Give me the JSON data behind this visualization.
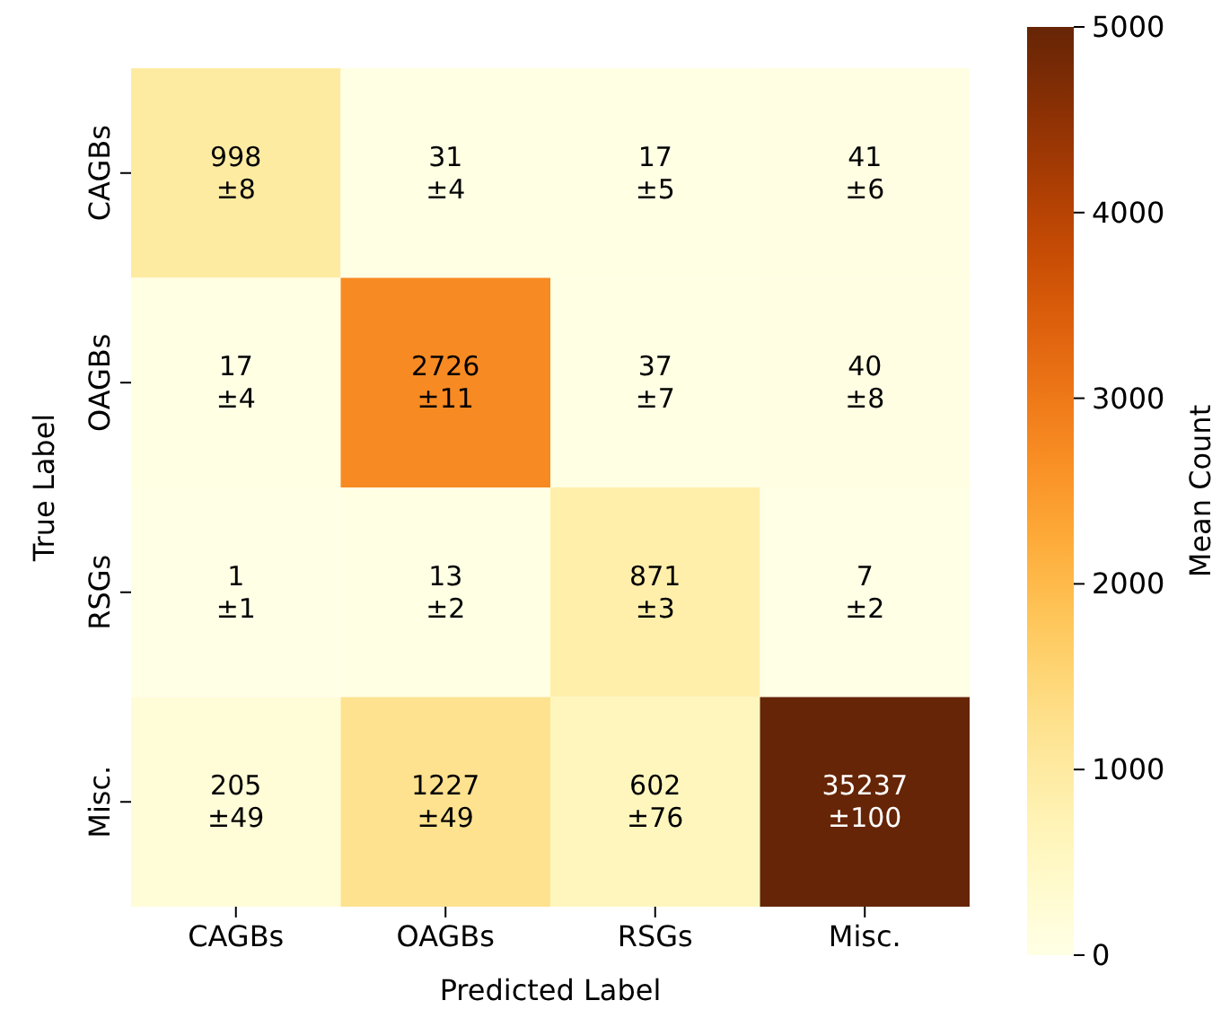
{
  "chart_data": {
    "type": "heatmap",
    "xlabel": "Predicted Label",
    "ylabel": "True Label",
    "clabel": "Mean Count",
    "categories": [
      "CAGBs",
      "OAGBs",
      "RSGs",
      "Misc."
    ],
    "y_categories": [
      "CAGBs",
      "OAGBs",
      "RSGs",
      "Misc."
    ],
    "cells": [
      [
        998,
        31,
        17,
        41
      ],
      [
        17,
        2726,
        37,
        40
      ],
      [
        1,
        13,
        871,
        7
      ],
      [
        205,
        1227,
        602,
        35237
      ]
    ],
    "cell_labels": [
      [
        "998\n±8",
        "31\n±4",
        "17\n±5",
        "41\n±6"
      ],
      [
        "17\n±4",
        "2726\n±11",
        "37\n±7",
        "40\n±8"
      ],
      [
        "1\n±1",
        "13\n±2",
        "871\n±3",
        "7\n±2"
      ],
      [
        "205\n±49",
        "1227\n±49",
        "602\n±76",
        "35237\n±100"
      ]
    ],
    "clim": [
      0,
      5000
    ],
    "cticks": [
      0,
      1000,
      2000,
      3000,
      4000,
      5000
    ]
  }
}
